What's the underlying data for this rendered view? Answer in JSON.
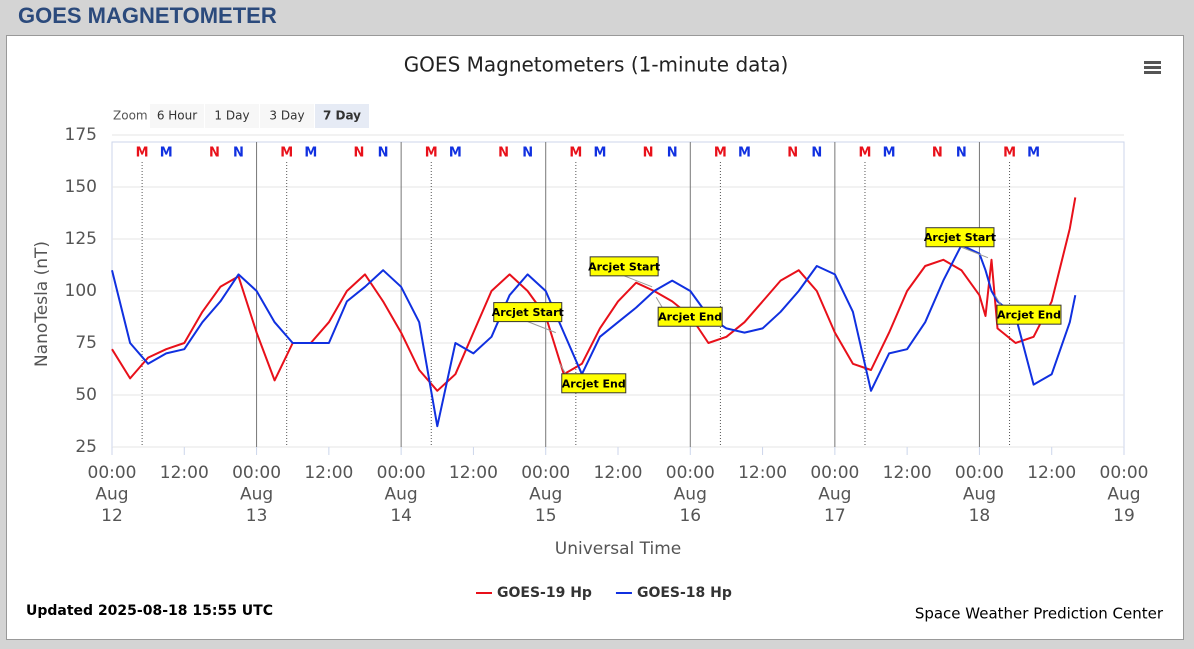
{
  "header": {
    "title": "GOES MAGNETOMETER"
  },
  "zoom": {
    "label": "Zoom",
    "buttons": [
      "6 Hour",
      "1 Day",
      "3 Day",
      "7 Day"
    ],
    "selected": 3
  },
  "chart_data": {
    "type": "line",
    "title": "GOES Magnetometers (1-minute data)",
    "ylabel": "NanoTesla (nT)",
    "xlabel": "Universal Time",
    "ylim": [
      25,
      175
    ],
    "yticks": [
      25,
      50,
      75,
      100,
      125,
      150,
      175
    ],
    "xlim": [
      "Aug 12 00:00",
      "Aug 19 00:00"
    ],
    "xticks": [
      {
        "value": "Aug 12 00:00",
        "label": "00:00 Aug 12"
      },
      {
        "value": "Aug 12 12:00",
        "label": "12:00"
      },
      {
        "value": "Aug 13 00:00",
        "label": "00:00 Aug 13"
      },
      {
        "value": "Aug 13 12:00",
        "label": "12:00"
      },
      {
        "value": "Aug 14 00:00",
        "label": "00:00 Aug 14"
      },
      {
        "value": "Aug 14 12:00",
        "label": "12:00"
      },
      {
        "value": "Aug 15 00:00",
        "label": "00:00 Aug 15"
      },
      {
        "value": "Aug 15 12:00",
        "label": "12:00"
      },
      {
        "value": "Aug 16 00:00",
        "label": "00:00 Aug 16"
      },
      {
        "value": "Aug 16 12:00",
        "label": "12:00"
      },
      {
        "value": "Aug 17 00:00",
        "label": "00:00 Aug 17"
      },
      {
        "value": "Aug 17 12:00",
        "label": "12:00"
      },
      {
        "value": "Aug 18 00:00",
        "label": "00:00 Aug 18"
      },
      {
        "value": "Aug 18 12:00",
        "label": "12:00"
      },
      {
        "value": "Aug 19 00:00",
        "label": "00:00 Aug 19"
      }
    ],
    "grid": true,
    "x": [
      "Aug 12 00:00",
      "Aug 12 03:00",
      "Aug 12 06:00",
      "Aug 12 09:00",
      "Aug 12 12:00",
      "Aug 12 15:00",
      "Aug 12 18:00",
      "Aug 12 21:00",
      "Aug 13 00:00",
      "Aug 13 03:00",
      "Aug 13 06:00",
      "Aug 13 09:00",
      "Aug 13 12:00",
      "Aug 13 15:00",
      "Aug 13 18:00",
      "Aug 13 21:00",
      "Aug 14 00:00",
      "Aug 14 03:00",
      "Aug 14 06:00",
      "Aug 14 09:00",
      "Aug 14 12:00",
      "Aug 14 15:00",
      "Aug 14 18:00",
      "Aug 14 21:00",
      "Aug 15 00:00",
      "Aug 15 03:00",
      "Aug 15 06:00",
      "Aug 15 09:00",
      "Aug 15 12:00",
      "Aug 15 15:00",
      "Aug 15 18:00",
      "Aug 15 21:00",
      "Aug 16 00:00",
      "Aug 16 03:00",
      "Aug 16 06:00",
      "Aug 16 09:00",
      "Aug 16 12:00",
      "Aug 16 15:00",
      "Aug 16 18:00",
      "Aug 16 21:00",
      "Aug 17 00:00",
      "Aug 17 03:00",
      "Aug 17 06:00",
      "Aug 17 09:00",
      "Aug 17 12:00",
      "Aug 17 15:00",
      "Aug 17 18:00",
      "Aug 17 21:00",
      "Aug 18 00:00",
      "Aug 18 01:00",
      "Aug 18 02:00",
      "Aug 18 03:00",
      "Aug 18 06:00",
      "Aug 18 09:00",
      "Aug 18 12:00",
      "Aug 18 15:00",
      "Aug 18 15:55"
    ],
    "series": [
      {
        "name": "GOES-19 Hp",
        "color": "#e8101a",
        "values": [
          72,
          58,
          68,
          72,
          75,
          90,
          102,
          107,
          80,
          57,
          75,
          75,
          85,
          100,
          108,
          95,
          80,
          62,
          52,
          60,
          80,
          100,
          108,
          100,
          88,
          60,
          65,
          82,
          95,
          104,
          100,
          95,
          88,
          75,
          78,
          85,
          95,
          105,
          110,
          100,
          80,
          65,
          62,
          80,
          100,
          112,
          115,
          110,
          98,
          88,
          115,
          82,
          75,
          78,
          95,
          130,
          145
        ]
      },
      {
        "name": "GOES-18 Hp",
        "color": "#1030e0",
        "values": [
          110,
          75,
          65,
          70,
          72,
          85,
          95,
          108,
          100,
          85,
          75,
          75,
          75,
          95,
          102,
          110,
          102,
          85,
          35,
          75,
          70,
          78,
          98,
          108,
          100,
          80,
          60,
          78,
          85,
          92,
          100,
          105,
          100,
          88,
          82,
          80,
          82,
          90,
          100,
          112,
          108,
          90,
          52,
          70,
          72,
          85,
          105,
          122,
          118,
          110,
          100,
          95,
          88,
          55,
          60,
          85,
          98
        ]
      }
    ],
    "markers": [
      {
        "text": "M",
        "color": "#e8101a",
        "x": [
          "Aug 12 05:00",
          "Aug 13 05:00",
          "Aug 14 05:00",
          "Aug 15 05:00",
          "Aug 16 05:00",
          "Aug 17 05:00",
          "Aug 18 05:00"
        ]
      },
      {
        "text": "M",
        "color": "#1030e0",
        "x": [
          "Aug 12 09:00",
          "Aug 13 09:00",
          "Aug 14 09:00",
          "Aug 15 09:00",
          "Aug 16 09:00",
          "Aug 17 09:00",
          "Aug 18 09:00"
        ]
      },
      {
        "text": "N",
        "color": "#e8101a",
        "x": [
          "Aug 12 17:00",
          "Aug 13 17:00",
          "Aug 14 17:00",
          "Aug 15 17:00",
          "Aug 16 17:00",
          "Aug 17 17:00"
        ]
      },
      {
        "text": "N",
        "color": "#1030e0",
        "x": [
          "Aug 12 21:00",
          "Aug 13 21:00",
          "Aug 14 21:00",
          "Aug 15 21:00",
          "Aug 16 21:00",
          "Aug 17 21:00"
        ]
      }
    ],
    "annotations": [
      {
        "text": "Arcjet Start",
        "x": "Aug 15 01:40",
        "y": 80
      },
      {
        "text": "Arcjet End",
        "x": "Aug 15 02:20",
        "y": 65
      },
      {
        "text": "Arcjet Start",
        "x": "Aug 15 17:40",
        "y": 102
      },
      {
        "text": "Arcjet End",
        "x": "Aug 15 18:20",
        "y": 97
      },
      {
        "text": "Arcjet Start",
        "x": "Aug 18 01:25",
        "y": 116
      },
      {
        "text": "Arcjet End",
        "x": "Aug 18 02:35",
        "y": 98
      }
    ]
  },
  "footer": {
    "updated": "Updated 2025-08-18 15:55 UTC",
    "credit": "Space Weather Prediction Center"
  }
}
